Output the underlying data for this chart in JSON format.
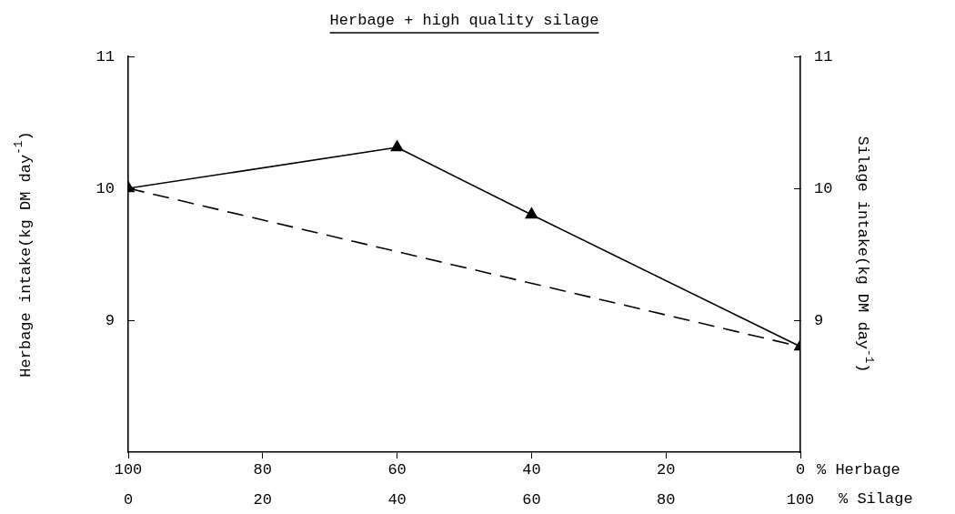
{
  "chart_data": {
    "type": "line",
    "title": "Herbage + high quality silage",
    "xlabel": "% Herbage",
    "x2label": "% Silage",
    "ylabel": "Herbage intake(kg DM day$^{-1}$)",
    "y2label": "Silage intake(kg DM day$^{-1}$)",
    "xlim": [
      100,
      0
    ],
    "xticks": [
      100,
      80,
      60,
      40,
      20,
      0
    ],
    "x2lim": [
      0,
      100
    ],
    "x2ticks": [
      0,
      20,
      40,
      60,
      80,
      100
    ],
    "ylim": [
      8,
      11
    ],
    "yticks": [
      9,
      10,
      11
    ],
    "y2lim": [
      8,
      11
    ],
    "y2ticks": [
      9,
      10,
      11
    ],
    "series": [
      {
        "color": "#000000",
        "x": [
          100,
          60,
          40,
          0
        ],
        "values": [
          10.0,
          10.31,
          9.8,
          8.8
        ],
        "marker": "triangle",
        "line_style": "solid"
      },
      {
        "color": "#000000",
        "x": [
          100,
          0
        ],
        "values": [
          10.0,
          8.8
        ],
        "marker": "none",
        "line_style": "dashed"
      }
    ],
    "grid": false,
    "legend": false
  }
}
